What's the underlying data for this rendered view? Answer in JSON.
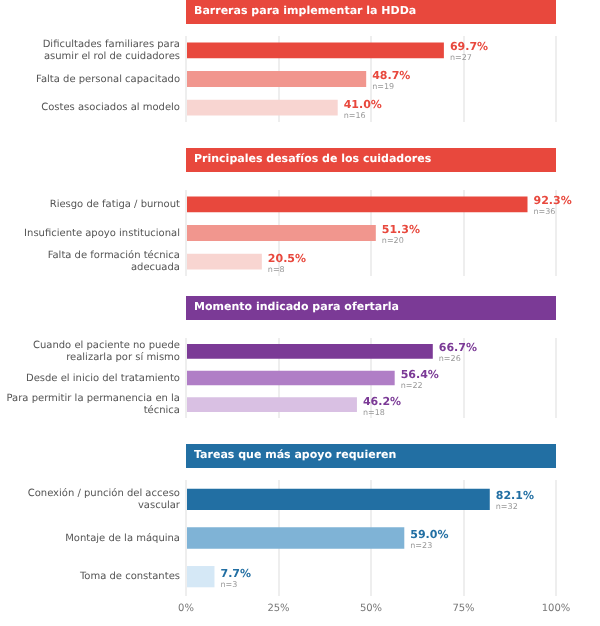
{
  "chart_data": [
    {
      "type": "bar",
      "orientation": "horizontal",
      "title": "Barreras para implementar la HDDa",
      "categories": [
        "Dificultades familiares para asumir el rol de cuidadores",
        "Falta de personal capacitado",
        "Costes asociados al modelo"
      ],
      "values": [
        69.7,
        48.7,
        41.0
      ],
      "value_labels": [
        "69.7%",
        "48.7%",
        "41.0%"
      ],
      "colors": [
        "#e8483d",
        "#f1968e",
        "#f8d5d1"
      ],
      "xlim": [
        0,
        100
      ],
      "xticks": [
        0,
        25,
        50,
        75,
        100
      ],
      "tick_labels": "y",
      "grid": "x",
      "annotations": [
        {
          "text": "n=27",
          "x": 69.7,
          "y": "Dificultades familiares para asumir el rol de cuidadores"
        },
        {
          "text": "n=19",
          "x": 48.7,
          "y": "Falta de personal capacitado"
        },
        {
          "text": "n=16",
          "x": 41.0,
          "y": "Costes asociados al modelo"
        }
      ]
    },
    {
      "type": "bar",
      "orientation": "horizontal",
      "title": "Principales desafíos de los cuidadores",
      "categories": [
        "Riesgo de fatiga / burnout",
        "Insuficiente apoyo institucional",
        "Falta de formación técnica adecuada"
      ],
      "values": [
        92.3,
        51.3,
        20.5
      ],
      "value_labels": [
        "92.3%",
        "51.3%",
        "20.5%"
      ],
      "colors": [
        "#e8483d",
        "#f1968e",
        "#f8d5d1"
      ],
      "xlim": [
        0,
        100
      ],
      "xticks": [
        0,
        25,
        50,
        75,
        100
      ],
      "tick_labels": "y",
      "grid": "x",
      "annotations": [
        {
          "text": "n=36",
          "x": 92.3,
          "y": "Riesgo de fatiga / burnout"
        },
        {
          "text": "n=20",
          "x": 51.3,
          "y": "Insuficiente apoyo institucional"
        },
        {
          "text": "n=8",
          "x": 20.5,
          "y": "Falta de formación técnica adecuada"
        }
      ]
    },
    {
      "type": "bar",
      "orientation": "horizontal",
      "title": "Momento indicado para ofertarla",
      "categories": [
        "Cuando el paciente no puede realizarla por sí mismo",
        "Desde el inicio del tratamiento",
        "Para permitir la permanencia en la técnica"
      ],
      "values": [
        66.7,
        56.4,
        46.2
      ],
      "value_labels": [
        "66.7%",
        "56.4%",
        "46.2%"
      ],
      "colors": [
        "#7b3a96",
        "#b07ec6",
        "#d9c0e3"
      ],
      "xlim": [
        0,
        100
      ],
      "xticks": [
        0,
        25,
        50,
        75,
        100
      ],
      "tick_labels": "y",
      "grid": "x",
      "annotations": [
        {
          "text": "n=26",
          "x": 66.7,
          "y": "Cuando el paciente no puede realizarla por sí mismo"
        },
        {
          "text": "n=22",
          "x": 56.4,
          "y": "Desde el inicio del tratamiento"
        },
        {
          "text": "n=18",
          "x": 46.2,
          "y": "Para permitir la permanencia en la técnica"
        }
      ]
    },
    {
      "type": "bar",
      "orientation": "horizontal",
      "title": "Tareas que más apoyo requieren",
      "categories": [
        "Conexión / punción del acceso vascular",
        "Montaje de la máquina",
        "Toma de constantes"
      ],
      "values": [
        82.1,
        59.0,
        7.7
      ],
      "value_labels": [
        "82.1%",
        "59.0%",
        "7.7%"
      ],
      "colors": [
        "#226fa3",
        "#7fb3d6",
        "#d5e8f6"
      ],
      "xlim": [
        0,
        100
      ],
      "xticks": [
        {
          "value": 0,
          "label": "0%"
        },
        {
          "value": 25,
          "label": "25%"
        },
        {
          "value": 50,
          "label": "50%"
        },
        {
          "value": 75,
          "label": "75%"
        },
        {
          "value": 100,
          "label": "100%"
        }
      ],
      "grid": "x",
      "annotations": [
        {
          "text": "n=32",
          "x": 82.1,
          "y": "Conexión / punción del acceso vascular"
        },
        {
          "text": "n=23",
          "x": 59.0,
          "y": "Montaje de la máquina"
        },
        {
          "text": "n=3",
          "x": 7.7,
          "y": "Toma de constantes"
        }
      ]
    }
  ]
}
